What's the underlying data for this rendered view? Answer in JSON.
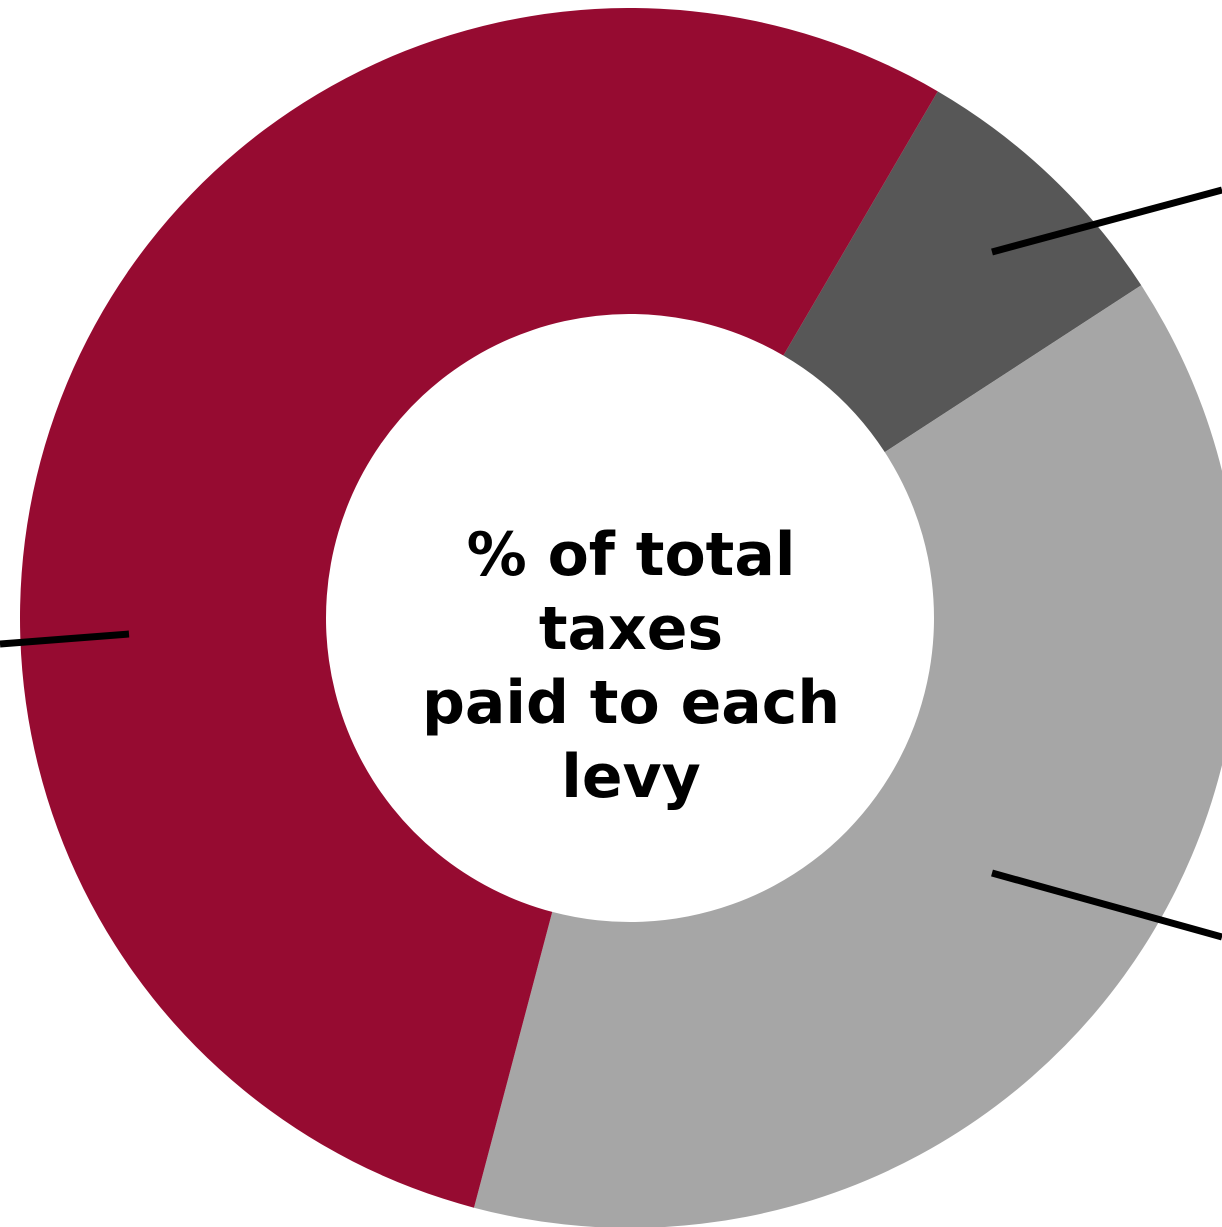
{
  "chart_data": {
    "type": "donut",
    "title_lines": [
      "% of total taxes",
      "paid to each",
      "levy"
    ],
    "slices": [
      {
        "name": "",
        "value": 7.4,
        "color": "#575757"
      },
      {
        "name": "",
        "value": 38.3,
        "color": "#a6a6a6"
      },
      {
        "name": "",
        "value": 54.3,
        "color": "#960b31"
      }
    ],
    "start_angle_deg": 30.3,
    "legend": "none"
  }
}
